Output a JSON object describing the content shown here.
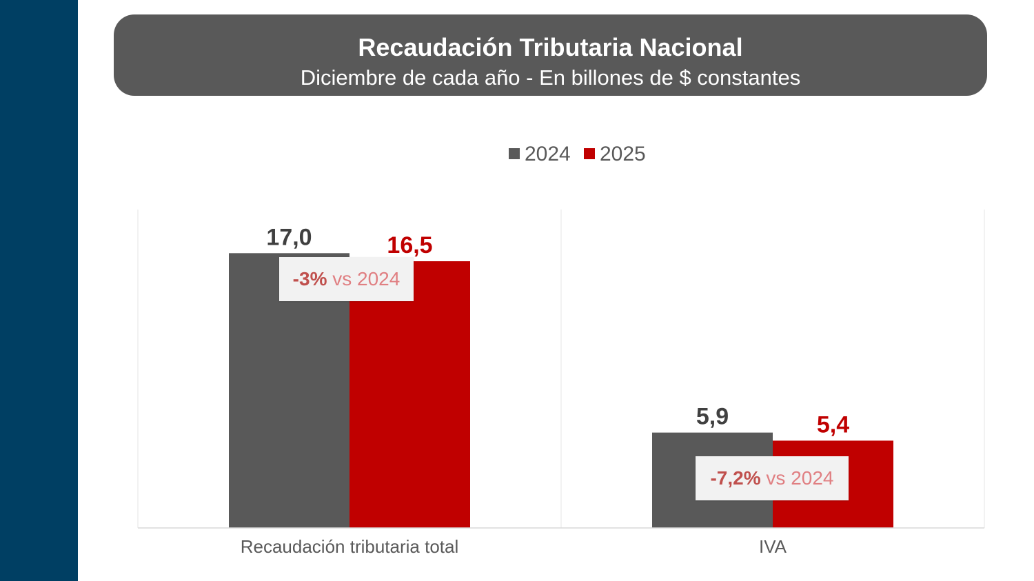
{
  "colors": {
    "sidebar": "#003f63",
    "header_bg": "#595959",
    "series_2024": "#595959",
    "series_2025": "#c00000",
    "callout_pct": "#c0504d"
  },
  "header": {
    "title": "Recaudación Tributaria Nacional",
    "subtitle": "Diciembre de cada año - En billones de $ constantes"
  },
  "chart_data": {
    "type": "bar",
    "title": "Recaudación Tributaria Nacional",
    "subtitle": "Diciembre de cada año - En billones de $ constantes",
    "categories": [
      "Recaudación tributaria total",
      "IVA"
    ],
    "series": [
      {
        "name": "2024",
        "values": [
          17.0,
          5.9
        ],
        "labels": [
          "17,0",
          "5,9"
        ]
      },
      {
        "name": "2025",
        "values": [
          16.5,
          5.4
        ],
        "labels": [
          "16,5",
          "5,4"
        ]
      }
    ],
    "ylim": [
      0,
      19.7
    ],
    "legend_position": "top-center",
    "annotations": [
      {
        "pct": "-3%",
        "text": " vs 2024"
      },
      {
        "pct": "-7,2%",
        "text": " vs 2024"
      }
    ]
  }
}
